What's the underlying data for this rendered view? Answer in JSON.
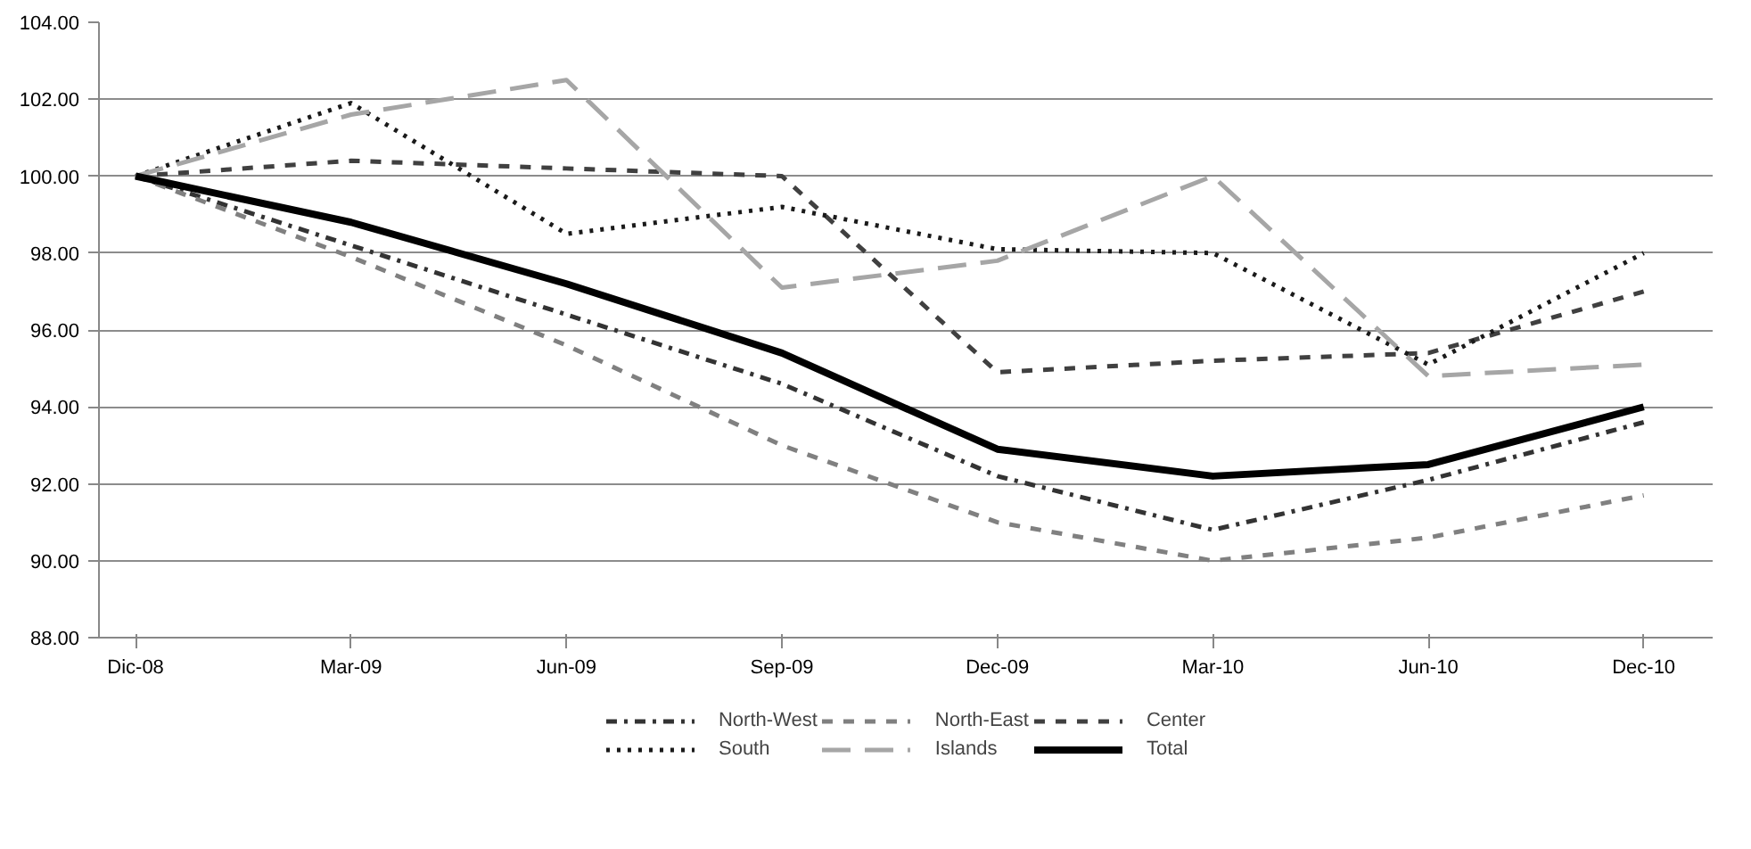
{
  "chart_data": {
    "type": "line",
    "categories": [
      "Dic-08",
      "Mar-09",
      "Jun-09",
      "Sep-09",
      "Dec-09",
      "Mar-10",
      "Jun-10",
      "Dec-10"
    ],
    "series": [
      {
        "name": "North-West",
        "color": "#333333",
        "line_style": "dashdot",
        "values": [
          100,
          98.2,
          96.4,
          94.6,
          92.2,
          90.8,
          92.1,
          93.6
        ]
      },
      {
        "name": "North-East",
        "color": "#808080",
        "line_style": "dashed",
        "values": [
          100,
          97.9,
          95.6,
          93.0,
          91.0,
          90.0,
          90.6,
          91.7
        ]
      },
      {
        "name": "Center",
        "color": "#404040",
        "line_style": "dashed",
        "values": [
          100,
          100.4,
          100.2,
          100.0,
          94.9,
          95.2,
          95.4,
          97.0
        ]
      },
      {
        "name": "South",
        "color": "#1a1a1a",
        "line_style": "dotted",
        "values": [
          100,
          101.9,
          98.5,
          99.2,
          98.1,
          98.0,
          95.1,
          98.0
        ]
      },
      {
        "name": "Islands",
        "color": "#a6a6a6",
        "line_style": "longdash",
        "values": [
          100,
          101.6,
          102.5,
          97.1,
          97.8,
          100.0,
          94.8,
          95.1
        ]
      },
      {
        "name": "Total",
        "color": "#000000",
        "line_style": "solid",
        "values": [
          100,
          98.8,
          97.2,
          95.4,
          92.9,
          92.2,
          92.5,
          94.0
        ]
      }
    ],
    "ylim": [
      88,
      104
    ],
    "yticks": [
      {
        "value": 88,
        "label": "88.00"
      },
      {
        "value": 90,
        "label": "90.00"
      },
      {
        "value": 92,
        "label": "92.00"
      },
      {
        "value": 94,
        "label": "94.00"
      },
      {
        "value": 96,
        "label": "96.00"
      },
      {
        "value": 98,
        "label": "98.00"
      },
      {
        "value": 100,
        "label": "100.00"
      },
      {
        "value": 102,
        "label": "102.00"
      },
      {
        "value": 104,
        "label": "104.00"
      }
    ],
    "grid": "y",
    "legend": "bottom",
    "marker": "none"
  }
}
